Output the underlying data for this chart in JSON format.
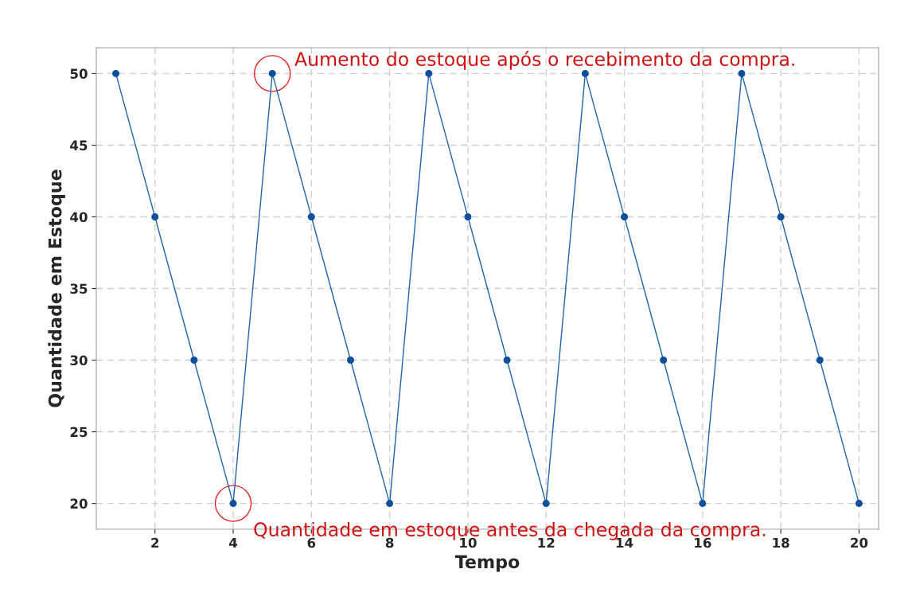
{
  "chart_data": {
    "type": "line",
    "xlabel": "Tempo",
    "ylabel": "Quantidade em Estoque",
    "x": [
      1,
      2,
      3,
      4,
      5,
      6,
      7,
      8,
      9,
      10,
      11,
      12,
      13,
      14,
      15,
      16,
      17,
      18,
      19,
      20
    ],
    "series": [
      {
        "color": "#1f64b0",
        "values": [
          50,
          40,
          30,
          20,
          50,
          40,
          30,
          20,
          50,
          40,
          30,
          20,
          50,
          40,
          30,
          20,
          50,
          40,
          30,
          20
        ]
      }
    ],
    "marker": "circle",
    "line_style": "solid",
    "xlim": [
      0.5,
      20.5
    ],
    "ylim": [
      18.2,
      51.8
    ],
    "xticks": [
      2,
      4,
      6,
      8,
      10,
      12,
      14,
      16,
      18,
      20
    ],
    "yticks": [
      20,
      25,
      30,
      35,
      40,
      45,
      50
    ],
    "grid": true,
    "annotations": [
      {
        "text": "Aumento do estoque após o recebimento da compra.",
        "x": 5,
        "y": 50
      },
      {
        "text": "Quantidade em estoque antes da chegada da compra.",
        "x": 4,
        "y": 20
      }
    ]
  }
}
